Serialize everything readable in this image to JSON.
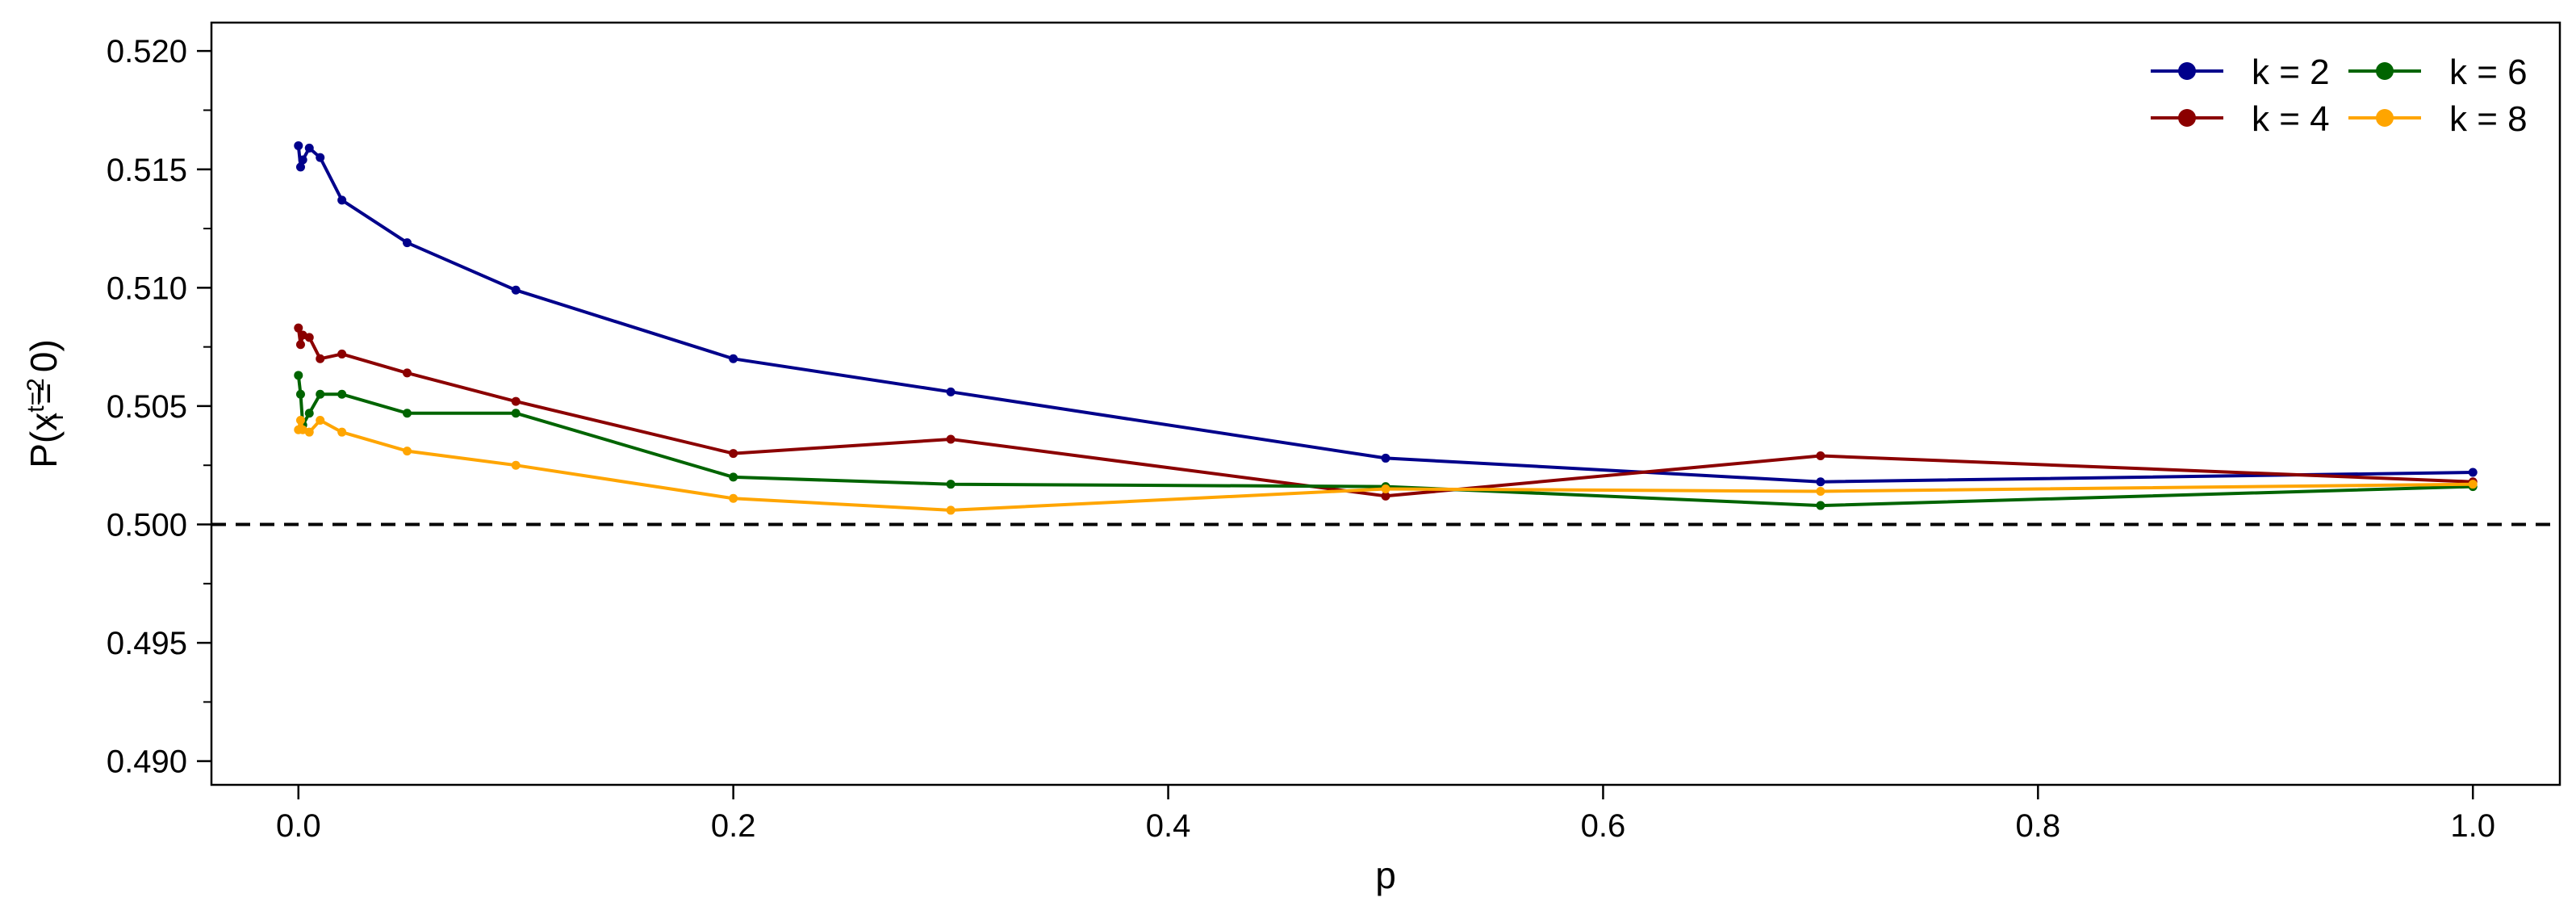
{
  "chart_data": {
    "type": "line",
    "title": "",
    "xlabel": "p",
    "ylabel": {
      "prefix": "P(x",
      "sub": "i",
      "sup": "t=2",
      "suffix": " = 0)"
    },
    "xlim": [
      -0.04,
      1.04
    ],
    "ylim": [
      0.489,
      0.5212
    ],
    "x_ticks": [
      0.0,
      0.2,
      0.4,
      0.6,
      0.8,
      1.0
    ],
    "x_tick_labels": [
      "0.0",
      "0.2",
      "0.4",
      "0.6",
      "0.8",
      "1.0"
    ],
    "y_ticks": [
      0.49,
      0.495,
      0.5,
      0.505,
      0.51,
      0.515,
      0.52
    ],
    "y_tick_labels": [
      "0.490",
      "0.495",
      "0.500",
      "0.505",
      "0.510",
      "0.515",
      "0.520"
    ],
    "y_minor_ticks": [
      0.4925,
      0.4975,
      0.5025,
      0.5075,
      0.5125,
      0.5175
    ],
    "reference_line": {
      "y": 0.5,
      "style": "dashed",
      "color": "#000000"
    },
    "grid": false,
    "legend_position": "top-right",
    "series": [
      {
        "name": "k = 2",
        "color": "#00008B",
        "x": [
          0.0,
          0.001,
          0.002,
          0.005,
          0.01,
          0.02,
          0.05,
          0.1,
          0.2,
          0.3,
          0.5,
          0.7,
          1.0
        ],
        "y": [
          0.516,
          0.5151,
          0.5154,
          0.5159,
          0.5155,
          0.5137,
          0.5119,
          0.5099,
          0.507,
          0.5056,
          0.5028,
          0.5018,
          0.5022
        ]
      },
      {
        "name": "k = 4",
        "color": "#8B0000",
        "x": [
          0.0,
          0.001,
          0.002,
          0.005,
          0.01,
          0.02,
          0.05,
          0.1,
          0.2,
          0.3,
          0.5,
          0.7,
          1.0
        ],
        "y": [
          0.5083,
          0.5076,
          0.508,
          0.5079,
          0.507,
          0.5072,
          0.5064,
          0.5052,
          0.503,
          0.5036,
          0.5012,
          0.5029,
          0.5018
        ]
      },
      {
        "name": "k = 6",
        "color": "#006400",
        "x": [
          0.0,
          0.001,
          0.002,
          0.005,
          0.01,
          0.02,
          0.05,
          0.1,
          0.2,
          0.3,
          0.5,
          0.7,
          1.0
        ],
        "y": [
          0.5063,
          0.5055,
          0.5042,
          0.5047,
          0.5055,
          0.5055,
          0.5047,
          0.5047,
          0.502,
          0.5017,
          0.5016,
          0.5008,
          0.5016
        ]
      },
      {
        "name": "k = 8",
        "color": "#FFA500",
        "x": [
          0.0,
          0.001,
          0.002,
          0.005,
          0.01,
          0.02,
          0.05,
          0.1,
          0.2,
          0.3,
          0.5,
          0.7,
          1.0
        ],
        "y": [
          0.504,
          0.5044,
          0.504,
          0.5039,
          0.5044,
          0.5039,
          0.5031,
          0.5025,
          0.5011,
          0.5006,
          0.5015,
          0.5014,
          0.5017
        ]
      }
    ]
  }
}
